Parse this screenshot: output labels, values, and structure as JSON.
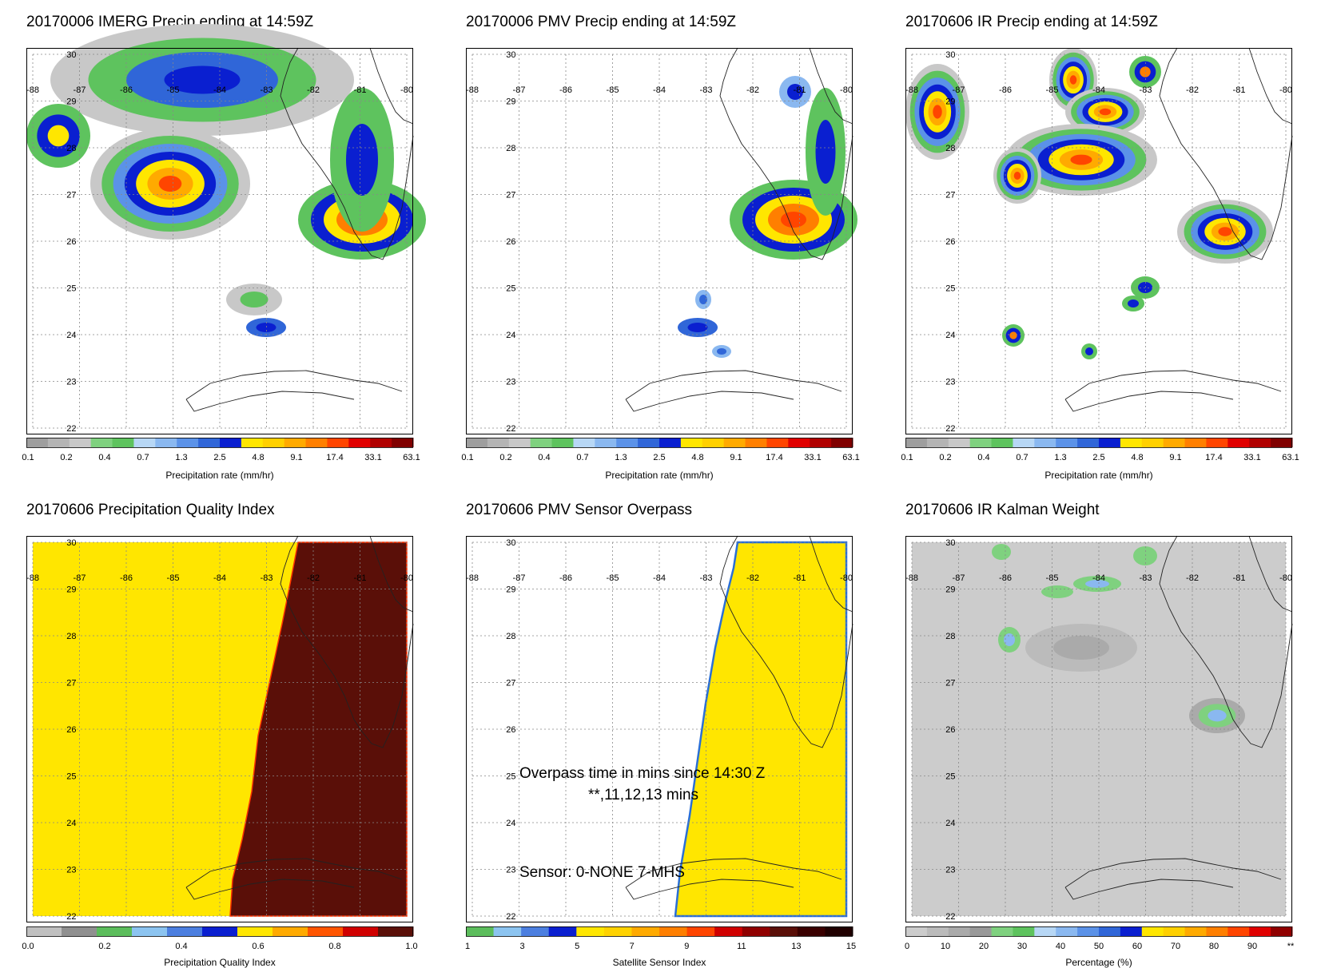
{
  "colors": {
    "precip_scale": [
      "#9e9e9e",
      "#b4b4b4",
      "#c8c8c8",
      "#7fd17f",
      "#5ec35e",
      "#b7d7f5",
      "#8ab8f0",
      "#5b92e8",
      "#3066d8",
      "#0a1fd0",
      "#ffe600",
      "#ffd000",
      "#ffaa00",
      "#ff7f00",
      "#ff4500",
      "#e00000",
      "#b00000",
      "#800000"
    ],
    "pqi_scale": [
      "#c0c0c0",
      "#909090",
      "#5cbd5c",
      "#8cc4f0",
      "#4c7fe0",
      "#0a1fd0",
      "#ffe600",
      "#ffaa00",
      "#ff5500",
      "#d00000",
      "#5a0f08"
    ],
    "sensor_scale": [
      "#5cbd5c",
      "#8cc4f0",
      "#4c7fe0",
      "#0a1fd0",
      "#ffe600",
      "#ffd200",
      "#ffaa00",
      "#ff7f00",
      "#ff4500",
      "#d00000",
      "#900000",
      "#5a0f08",
      "#3a0000",
      "#200000"
    ],
    "weight_scale": [
      "#cccccc",
      "#bbbbbb",
      "#aaaaaa",
      "#999999",
      "#7fd17f",
      "#5ec35e",
      "#b7d7f5",
      "#8ab8f0",
      "#5b92e8",
      "#3066d8",
      "#0a1fd0",
      "#ffe600",
      "#ffd000",
      "#ffaa00",
      "#ff7f00",
      "#ff4500",
      "#e00000",
      "#900000"
    ]
  },
  "map_extent": {
    "lon": [
      -88,
      -80
    ],
    "lat": [
      22,
      30
    ]
  },
  "lon_ticks": [
    "-88",
    "-87",
    "-86",
    "-85",
    "-84",
    "-83",
    "-82",
    "-81",
    "-80"
  ],
  "lat_ticks": [
    "30",
    "29",
    "28",
    "27",
    "26",
    "25",
    "24",
    "23",
    "22"
  ],
  "panels": [
    {
      "title": "20170006 IMERG Precip ending at 14:59Z",
      "cbar_label": "Precipitation rate (mm/hr)",
      "cbar_ticks": [
        "0.1",
        "0.2",
        "0.4",
        "0.7",
        "1.3",
        "2.5",
        "4.8",
        "9.1",
        "17.4",
        "33.1",
        "63.1"
      ],
      "scale": "precip_scale"
    },
    {
      "title": "20170006 PMV Precip ending at 14:59Z",
      "cbar_label": "Precipitation rate (mm/hr)",
      "cbar_ticks": [
        "0.1",
        "0.2",
        "0.4",
        "0.7",
        "1.3",
        "2.5",
        "4.8",
        "9.1",
        "17.4",
        "33.1",
        "63.1"
      ],
      "scale": "precip_scale"
    },
    {
      "title": "20170606 IR Precip ending at 14:59Z",
      "cbar_label": "Precipitation rate (mm/hr)",
      "cbar_ticks": [
        "0.1",
        "0.2",
        "0.4",
        "0.7",
        "1.3",
        "2.5",
        "4.8",
        "9.1",
        "17.4",
        "33.1",
        "63.1"
      ],
      "scale": "precip_scale"
    },
    {
      "title": "20170606 Precipitation Quality Index",
      "cbar_label": "Precipitation Quality Index",
      "cbar_ticks": [
        "0.0",
        "0.2",
        "0.4",
        "0.6",
        "0.8",
        "1.0"
      ],
      "scale": "pqi_scale"
    },
    {
      "title": "20170606 PMV Sensor Overpass",
      "cbar_label": "Satellite Sensor Index",
      "cbar_ticks": [
        "1",
        "3",
        "5",
        "7",
        "9",
        "11",
        "13",
        "15"
      ],
      "scale": "sensor_scale"
    },
    {
      "title": "20170606 IR Kalman Weight",
      "cbar_label": "Percentage (%)",
      "cbar_ticks": [
        "0",
        "10",
        "20",
        "30",
        "40",
        "50",
        "60",
        "70",
        "80",
        "90",
        "**"
      ],
      "scale": "weight_scale"
    }
  ],
  "overpass_note": {
    "line1": "Overpass time in mins since 14:30 Z",
    "line2": "**,11,12,13 mins",
    "line3": "Sensor:   0-NONE  7-MHS"
  }
}
